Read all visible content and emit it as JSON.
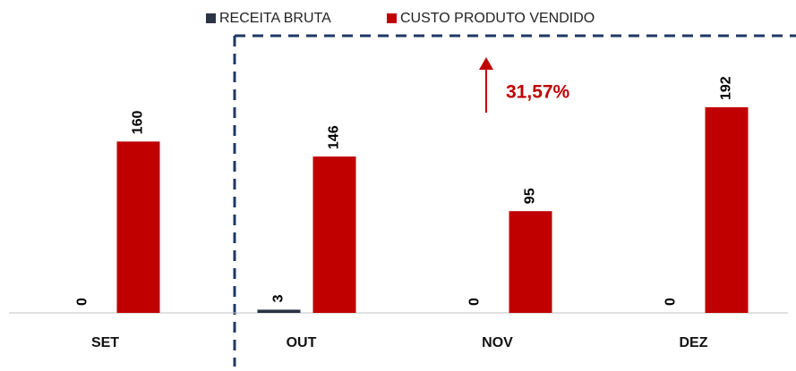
{
  "chart_data": {
    "type": "bar",
    "categories": [
      "SET",
      "OUT",
      "NOV",
      "DEZ"
    ],
    "series": [
      {
        "name": "RECEITA BRUTA",
        "color": "#2b3444",
        "values": [
          0,
          3,
          0,
          0
        ]
      },
      {
        "name": "CUSTO PRODUTO VENDIDO",
        "color": "#c00000",
        "values": [
          160,
          146,
          95,
          192
        ]
      }
    ],
    "annotations": [
      "31,57%"
    ],
    "legend": "top"
  }
}
